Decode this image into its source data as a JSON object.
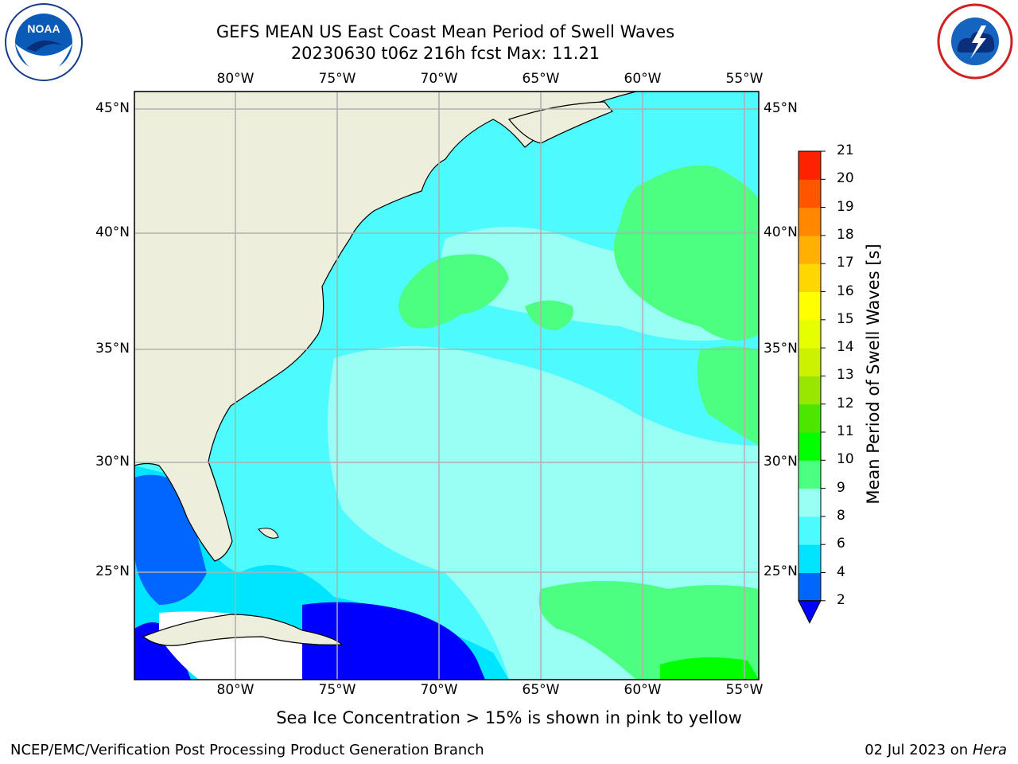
{
  "header": {
    "title_line1": "GEFS MEAN US East Coast Mean Period of Swell Waves",
    "title_line2": "20230630 t06z 216h fcst   Max: 11.21"
  },
  "logos": {
    "left": {
      "name": "noaa-logo",
      "text": "NOAA"
    },
    "right": {
      "name": "nws-logo",
      "text": "NATIONAL WEATHER SERVICE"
    }
  },
  "map": {
    "lon_labels": [
      "80°W",
      "75°W",
      "70°W",
      "65°W",
      "60°W",
      "55°W"
    ],
    "lat_labels": [
      "45°N",
      "40°N",
      "35°N",
      "30°N",
      "25°N"
    ],
    "extent": {
      "lon_min": -85,
      "lon_max": -54.2,
      "lat_min": 20.5,
      "lat_max": 45.8
    }
  },
  "colorbar": {
    "label": "Mean Period of Swell Waves [s]",
    "ticks": [
      "2",
      "4",
      "6",
      "8",
      "9",
      "10",
      "11",
      "12",
      "13",
      "14",
      "15",
      "16",
      "17",
      "18",
      "19",
      "20",
      "21"
    ],
    "colors": [
      "#0066ff",
      "#00e5ff",
      "#4dfbff",
      "#99fff5",
      "#4cff80",
      "#00ff00",
      "#4ce600",
      "#99e600",
      "#ccf200",
      "#e6ff00",
      "#ffff00",
      "#ffd700",
      "#ffb000",
      "#ff8800",
      "#ff5500",
      "#ff2200"
    ],
    "under_color": "#0000ff"
  },
  "colors": {
    "land": "#eeeedc",
    "grid": "#b0b0b0"
  },
  "caption": "Sea Ice Concentration > 15% is shown in pink to yellow",
  "footer": {
    "left": "NCEP/EMC/Verification Post Processing Product Generation Branch",
    "date": "02 Jul 2023 on ",
    "machine": "Hera"
  }
}
